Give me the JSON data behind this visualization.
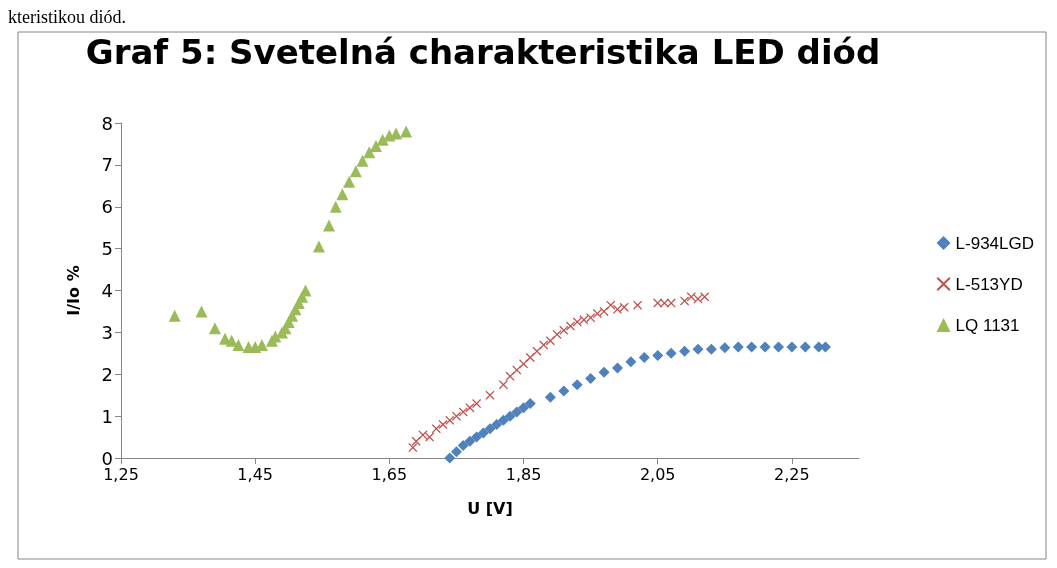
{
  "chart_data": {
    "type": "scatter",
    "title": "Graf 5: Svetelná charakteristika LED diód",
    "xlabel": "U [V]",
    "ylabel": "I/Io %",
    "annotations": [
      "kteristikou diód."
    ],
    "xlim": [
      1.25,
      2.35
    ],
    "xticks": [
      {
        "value": 1.25,
        "label": "1,25"
      },
      {
        "value": 1.45,
        "label": "1,45"
      },
      {
        "value": 1.65,
        "label": "1,65"
      },
      {
        "value": 1.85,
        "label": "1,85"
      },
      {
        "value": 2.05,
        "label": "2,05"
      },
      {
        "value": 2.25,
        "label": "2,25"
      }
    ],
    "ylim": [
      0,
      8
    ],
    "yticks": [
      0,
      1,
      2,
      3,
      4,
      5,
      6,
      7,
      8
    ],
    "grid": false,
    "legend": "right",
    "series": [
      {
        "name": "L-934LGD",
        "color": "#4f81bd",
        "marker": "diamond",
        "x": [
          1.74,
          1.75,
          1.76,
          1.77,
          1.78,
          1.79,
          1.8,
          1.81,
          1.82,
          1.83,
          1.84,
          1.85,
          1.86,
          1.89,
          1.91,
          1.93,
          1.95,
          1.97,
          1.99,
          2.01,
          2.03,
          2.05,
          2.07,
          2.09,
          2.11,
          2.13,
          2.15,
          2.17,
          2.19,
          2.21,
          2.23,
          2.25,
          2.27,
          2.29,
          2.3
        ],
        "values": [
          0,
          0.15,
          0.3,
          0.4,
          0.5,
          0.6,
          0.7,
          0.8,
          0.9,
          1.0,
          1.1,
          1.2,
          1.3,
          1.45,
          1.6,
          1.75,
          1.9,
          2.05,
          2.15,
          2.3,
          2.4,
          2.45,
          2.5,
          2.55,
          2.6,
          2.6,
          2.63,
          2.65,
          2.65,
          2.65,
          2.65,
          2.65,
          2.65,
          2.65,
          2.65
        ]
      },
      {
        "name": "L-513YD",
        "color": "#c0504d",
        "marker": "cross",
        "x": [
          1.685,
          1.69,
          1.7,
          1.71,
          1.72,
          1.73,
          1.74,
          1.75,
          1.76,
          1.77,
          1.78,
          1.8,
          1.82,
          1.83,
          1.84,
          1.85,
          1.86,
          1.87,
          1.88,
          1.89,
          1.9,
          1.91,
          1.92,
          1.93,
          1.94,
          1.95,
          1.96,
          1.97,
          1.98,
          1.99,
          2.0,
          2.02,
          2.05,
          2.06,
          2.07,
          2.09,
          2.1,
          2.11,
          2.12
        ],
        "values": [
          0.25,
          0.4,
          0.55,
          0.5,
          0.7,
          0.8,
          0.9,
          1.0,
          1.1,
          1.2,
          1.3,
          1.5,
          1.75,
          1.95,
          2.1,
          2.25,
          2.4,
          2.55,
          2.7,
          2.8,
          2.95,
          3.05,
          3.15,
          3.25,
          3.3,
          3.35,
          3.45,
          3.5,
          3.65,
          3.55,
          3.6,
          3.65,
          3.7,
          3.7,
          3.7,
          3.75,
          3.85,
          3.8,
          3.85
        ]
      },
      {
        "name": "LQ 1131",
        "color": "#9bbb59",
        "marker": "triangle",
        "x": [
          1.33,
          1.37,
          1.39,
          1.405,
          1.415,
          1.425,
          1.44,
          1.45,
          1.46,
          1.475,
          1.48,
          1.49,
          1.495,
          1.5,
          1.505,
          1.51,
          1.515,
          1.52,
          1.525,
          1.545,
          1.56,
          1.57,
          1.58,
          1.59,
          1.6,
          1.61,
          1.62,
          1.63,
          1.64,
          1.65,
          1.66,
          1.675
        ],
        "values": [
          3.4,
          3.5,
          3.1,
          2.85,
          2.8,
          2.7,
          2.65,
          2.65,
          2.7,
          2.8,
          2.9,
          3.0,
          3.1,
          3.25,
          3.4,
          3.55,
          3.7,
          3.85,
          4.0,
          5.05,
          5.55,
          6.0,
          6.3,
          6.6,
          6.85,
          7.1,
          7.3,
          7.45,
          7.6,
          7.7,
          7.75,
          7.8
        ]
      }
    ]
  }
}
